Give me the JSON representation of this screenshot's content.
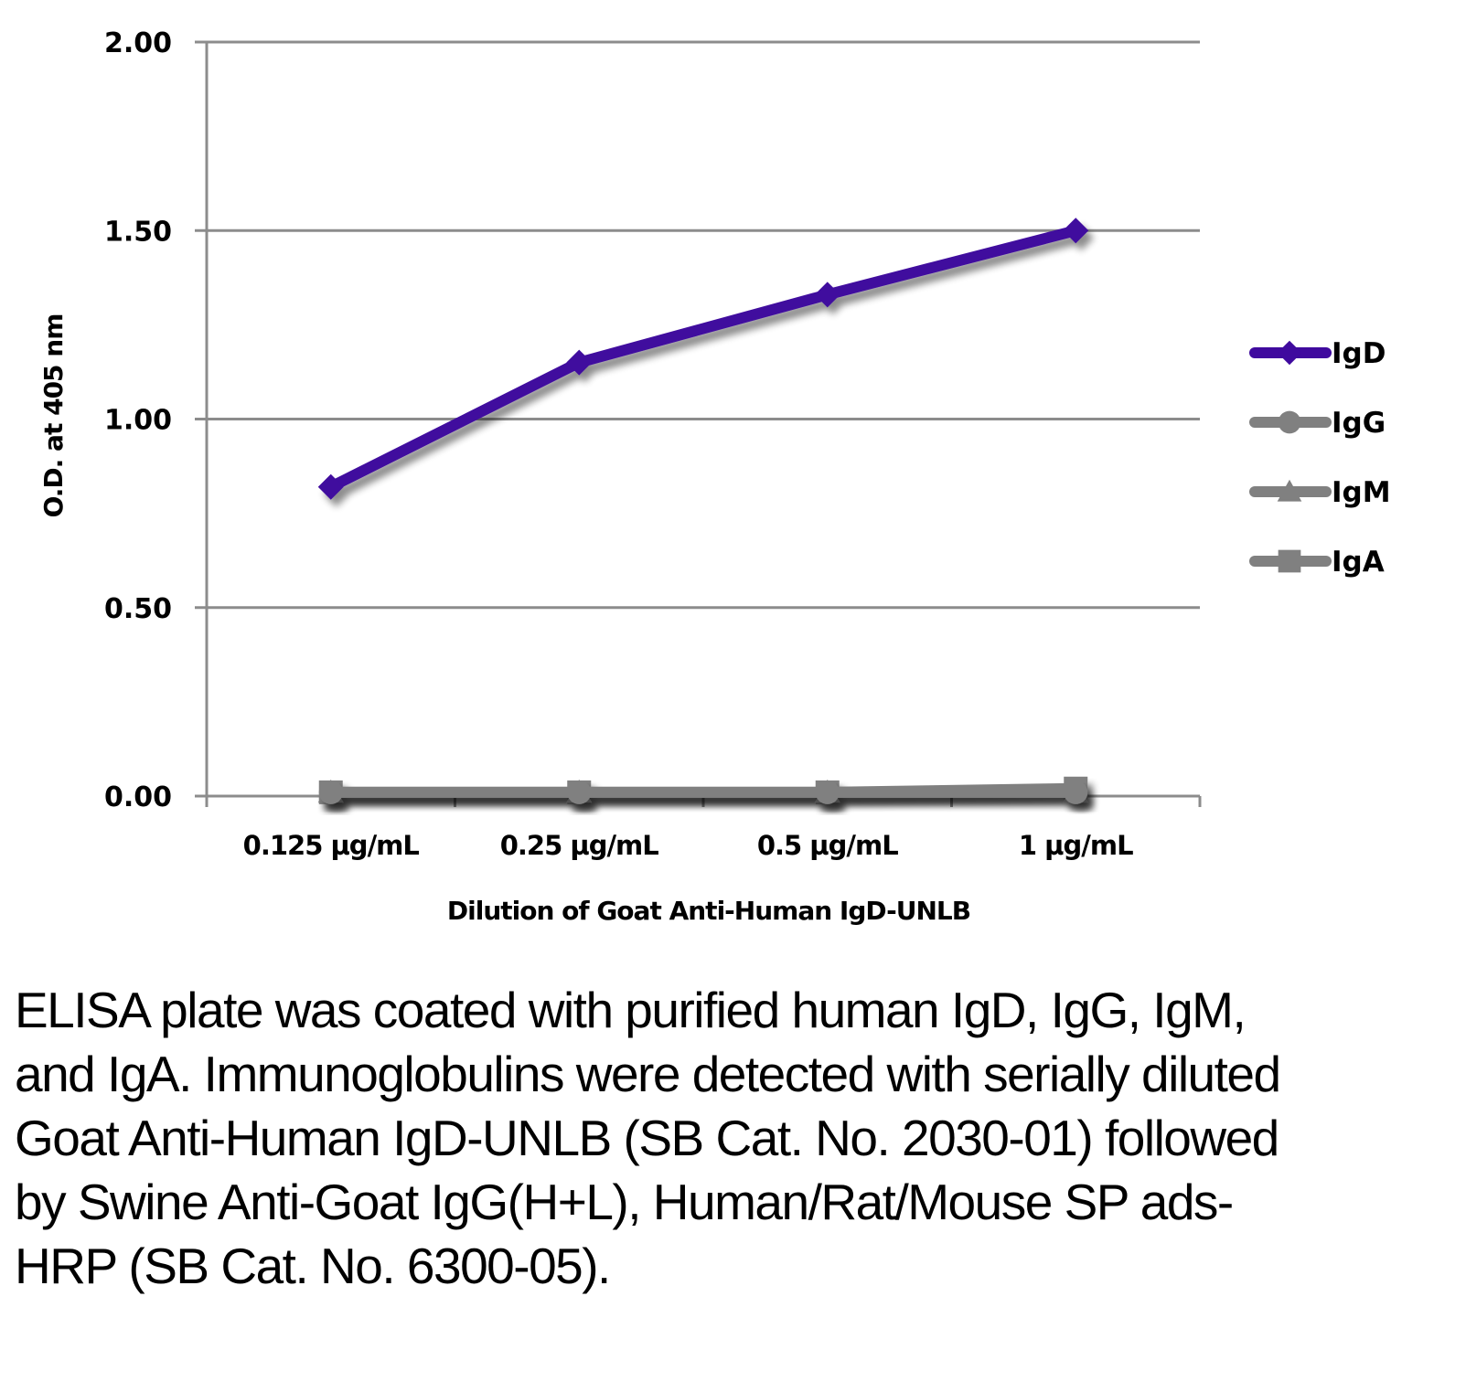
{
  "chart_data": {
    "type": "line",
    "title": "",
    "xlabel": "Dilution of Goat Anti-Human IgD-UNLB",
    "ylabel": "O.D. at 405 nm",
    "categories": [
      "0.125 µg/mL",
      "0.25 µg/mL",
      "0.5 µg/mL",
      "1 µg/mL"
    ],
    "ylim": [
      0,
      2.0
    ],
    "yticks": [
      "0.00",
      "0.50",
      "1.00",
      "1.50",
      "2.00"
    ],
    "ytick_values": [
      0,
      0.5,
      1.0,
      1.5,
      2.0
    ],
    "grid": true,
    "legend_position": "right",
    "series": [
      {
        "name": "IgD",
        "marker": "diamond",
        "color": "#3F0A9E",
        "values": [
          0.82,
          1.15,
          1.33,
          1.5
        ]
      },
      {
        "name": "IgG",
        "marker": "circle",
        "color": "#808080",
        "values": [
          0.01,
          0.01,
          0.01,
          0.01
        ]
      },
      {
        "name": "IgM",
        "marker": "triangle",
        "color": "#808080",
        "values": [
          0.01,
          0.01,
          0.01,
          0.01
        ]
      },
      {
        "name": "IgA",
        "marker": "square",
        "color": "#808080",
        "values": [
          0.01,
          0.01,
          0.01,
          0.02
        ]
      }
    ]
  },
  "caption": "ELISA plate was coated with purified human IgD, IgG, IgM, and IgA.  Immunoglobulins were detected with serially diluted Goat Anti-Human IgD-UNLB (SB Cat. No. 2030-01) followed by Swine Anti-Goat IgG(H+L), Human/Rat/Mouse SP ads-HRP (SB Cat. No. 6300-05).",
  "colors": {
    "grid": "#8C8C8C",
    "axis": "#8C8C8C"
  }
}
